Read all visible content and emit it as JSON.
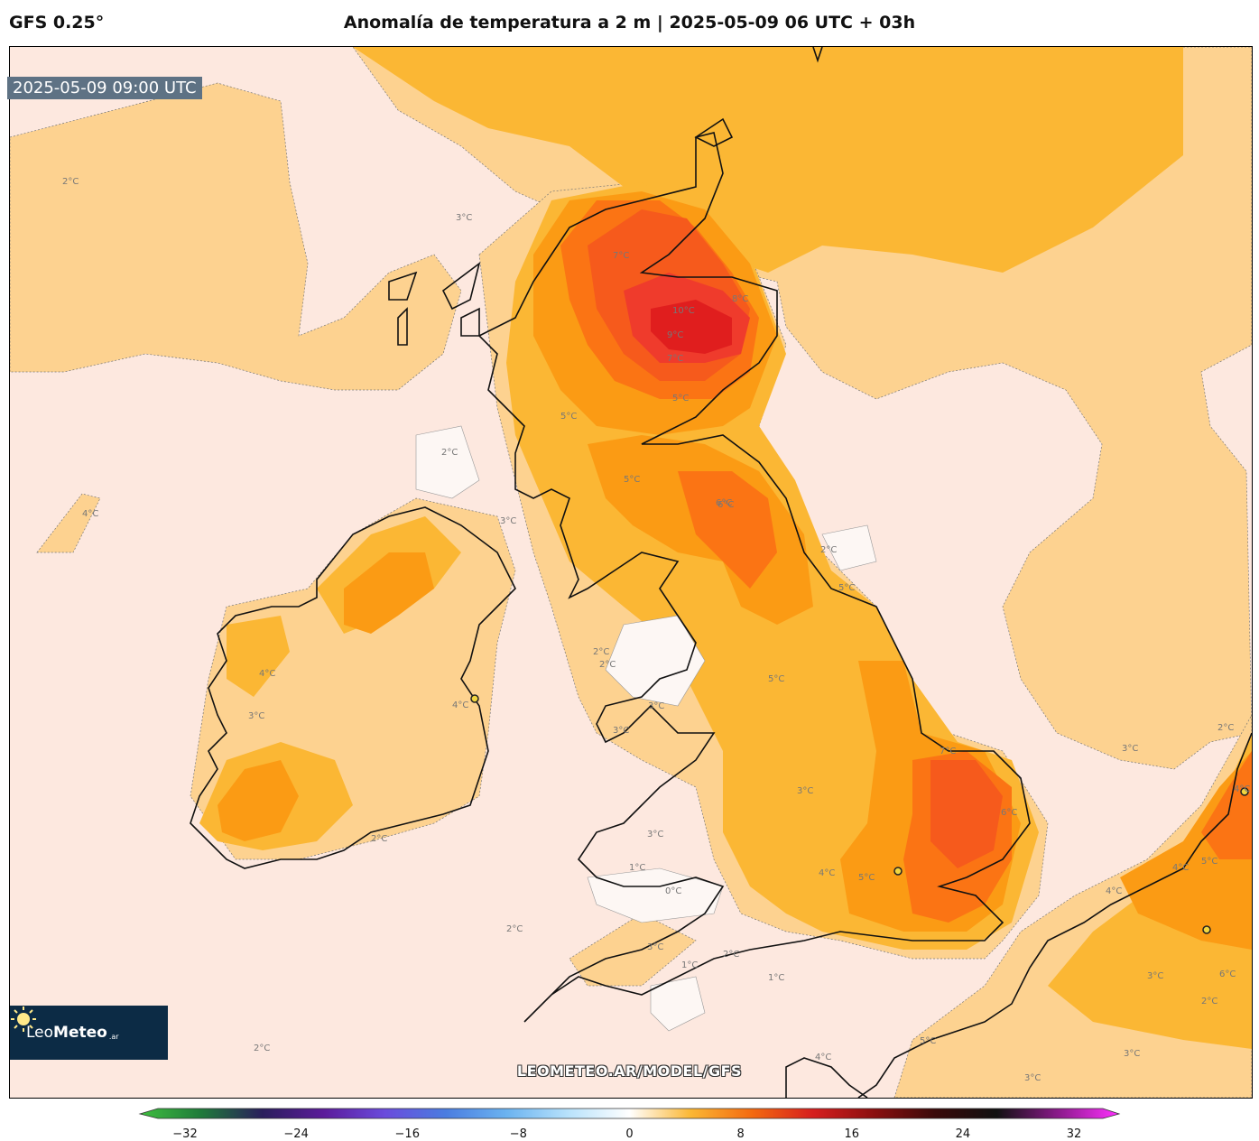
{
  "header": {
    "model": "GFS 0.25°",
    "title": "Anomalía de temperatura a 2 m | 2025-05-09 06 UTC + 03h"
  },
  "map": {
    "valid_time": "2025-05-09 09:00 UTC",
    "watermark": "LEOMETEO.AR/MODEL/GFS",
    "logo": {
      "name_light": "Leo",
      "name_bold": "Meteo",
      "suffix": ".ar"
    },
    "contour_labels": [
      "2°C",
      "3°C",
      "4°C",
      "5°C",
      "6°C",
      "7°C",
      "8°C",
      "9°C",
      "10°C",
      "1°C",
      "0°C"
    ],
    "label_instances": [
      {
        "text": "2°C"
      },
      {
        "text": "3°C"
      },
      {
        "text": "4°C"
      },
      {
        "text": "2°C"
      },
      {
        "text": "3°C"
      },
      {
        "text": "5°C"
      },
      {
        "text": "6°C"
      },
      {
        "text": "7°C"
      },
      {
        "text": "8°C"
      },
      {
        "text": "9°C"
      },
      {
        "text": "10°C"
      },
      {
        "text": "7°C"
      },
      {
        "text": "5°C"
      },
      {
        "text": "5°C"
      },
      {
        "text": "6°C"
      },
      {
        "text": "2°C"
      },
      {
        "text": "5°C"
      },
      {
        "text": "5°C"
      },
      {
        "text": "7°C"
      },
      {
        "text": "6°C"
      },
      {
        "text": "5°C"
      },
      {
        "text": "4°C"
      },
      {
        "text": "3°C"
      },
      {
        "text": "3°C"
      },
      {
        "text": "2°C"
      },
      {
        "text": "4°C"
      },
      {
        "text": "5°C"
      },
      {
        "text": "4°C"
      },
      {
        "text": "3°C"
      },
      {
        "text": "2°C"
      },
      {
        "text": "4°C"
      },
      {
        "text": "2°C"
      },
      {
        "text": "2°C"
      },
      {
        "text": "2°C"
      },
      {
        "text": "3°C"
      },
      {
        "text": "1°C"
      },
      {
        "text": "0°C"
      },
      {
        "text": "2°C"
      },
      {
        "text": "3°C"
      },
      {
        "text": "2°C"
      },
      {
        "text": "1°C"
      },
      {
        "text": "1°C"
      },
      {
        "text": "2°C"
      },
      {
        "text": "4°C"
      },
      {
        "text": "5°C"
      },
      {
        "text": "3°C"
      },
      {
        "text": "3°C"
      },
      {
        "text": "4°C"
      },
      {
        "text": "5°C"
      },
      {
        "text": "5°C"
      },
      {
        "text": "6°C"
      },
      {
        "text": "3°C"
      },
      {
        "text": "3°C"
      },
      {
        "text": "4°C"
      },
      {
        "text": "3°C"
      }
    ],
    "colors": {
      "anomaly_0_2": "#fde8df",
      "anomaly_neg": "#fdf7f4",
      "anomaly_2_4": "#fdd290",
      "anomaly_4_5": "#fbb734",
      "anomaly_5_6": "#fb9b14",
      "anomaly_6_7": "#fb7414",
      "anomaly_7_8": "#f65a1c",
      "anomaly_8_9": "#ef3b2c",
      "anomaly_9_10": "#e01e1e"
    }
  },
  "colorbar": {
    "ticks": [
      "−32",
      "−24",
      "−16",
      "−8",
      "0",
      "8",
      "16",
      "24",
      "32"
    ],
    "range": [
      -32,
      32
    ],
    "stops": [
      {
        "value": -32,
        "color": "#3fbf3f"
      },
      {
        "value": -28,
        "color": "#1f7a3a"
      },
      {
        "value": -24,
        "color": "#2a1e5c"
      },
      {
        "value": -20,
        "color": "#5b1b9a"
      },
      {
        "value": -16,
        "color": "#6a4bdc"
      },
      {
        "value": -12,
        "color": "#4a7de0"
      },
      {
        "value": -8,
        "color": "#6bb3f0"
      },
      {
        "value": -4,
        "color": "#b8e2fb"
      },
      {
        "value": 0,
        "color": "#ffffff"
      },
      {
        "value": 4,
        "color": "#fbb734"
      },
      {
        "value": 8,
        "color": "#f36a10"
      },
      {
        "value": 12,
        "color": "#d61e1e"
      },
      {
        "value": 16,
        "color": "#8a0f0f"
      },
      {
        "value": 20,
        "color": "#3a0a0a"
      },
      {
        "value": 24,
        "color": "#111111"
      },
      {
        "value": 28,
        "color": "#8a1a8a"
      },
      {
        "value": 32,
        "color": "#ff30ff"
      }
    ]
  }
}
